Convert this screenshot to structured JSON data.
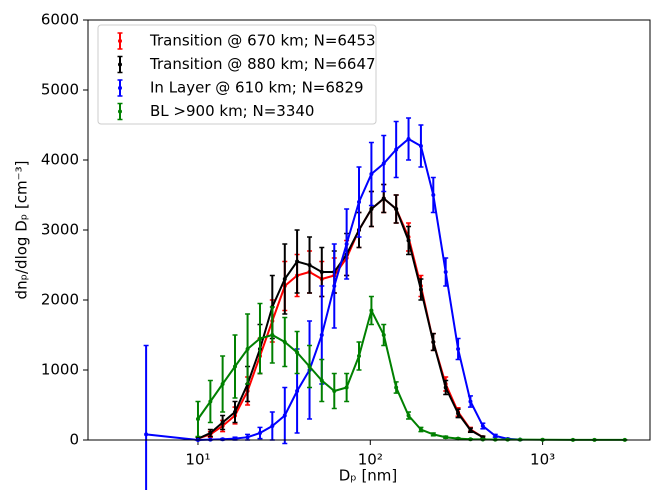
{
  "chart_data": {
    "type": "errorbar",
    "xlabel": "Dₚ [nm]",
    "ylabel": "dnₚ/dlog Dₚ [cm⁻³]",
    "xscale": "log",
    "xlim": [
      2.3,
      4200
    ],
    "ylim": [
      0,
      6000
    ],
    "xticks": [
      {
        "value": 10,
        "label": "10¹"
      },
      {
        "value": 100,
        "label": "10²"
      },
      {
        "value": 1000,
        "label": "10³"
      }
    ],
    "yticks": [
      0,
      1000,
      2000,
      3000,
      4000,
      5000,
      6000
    ],
    "legend": "upper left",
    "series": [
      {
        "name": "Transition @ 670 km; N=6453",
        "color": "#ff0000",
        "x": [
          10,
          11.8,
          13.9,
          16.4,
          19.4,
          22.9,
          27.0,
          31.9,
          37.6,
          44.4,
          52.3,
          61.8,
          72.9,
          86.0,
          101.5,
          119.7,
          141.3,
          166.7,
          196.7,
          232.1,
          273.9,
          323.2,
          381.3,
          450
        ],
        "values": [
          20,
          80,
          200,
          350,
          700,
          1200,
          1700,
          2200,
          2350,
          2400,
          2300,
          2350,
          2600,
          3000,
          3300,
          3450,
          3300,
          2900,
          2200,
          1400,
          800,
          400,
          150,
          40
        ],
        "errors": [
          20,
          40,
          80,
          120,
          200,
          250,
          300,
          350,
          300,
          300,
          250,
          250,
          250,
          250,
          250,
          200,
          200,
          200,
          150,
          120,
          100,
          60,
          30,
          15
        ]
      },
      {
        "name": "Transition @ 880 km; N=6647",
        "color": "#000000",
        "x": [
          10,
          11.8,
          13.9,
          16.4,
          19.4,
          22.9,
          27.0,
          31.9,
          37.6,
          44.4,
          52.3,
          61.8,
          72.9,
          86.0,
          101.5,
          119.7,
          141.3,
          166.7,
          196.7,
          232.1,
          273.9,
          323.2,
          381.3,
          450
        ],
        "values": [
          20,
          100,
          250,
          400,
          800,
          1300,
          1900,
          2300,
          2550,
          2500,
          2400,
          2400,
          2650,
          3000,
          3300,
          3450,
          3300,
          2850,
          2150,
          1400,
          750,
          380,
          140,
          40
        ],
        "errors": [
          20,
          50,
          100,
          150,
          250,
          350,
          450,
          500,
          450,
          400,
          350,
          300,
          300,
          250,
          250,
          200,
          200,
          200,
          150,
          120,
          100,
          60,
          30,
          15
        ]
      },
      {
        "name": "In Layer @ 610 km; N=6829",
        "color": "#0000ff",
        "x": [
          5,
          10,
          11.8,
          13.9,
          16.4,
          19.4,
          22.9,
          27.0,
          31.9,
          37.6,
          44.4,
          52.3,
          61.8,
          72.9,
          86.0,
          101.5,
          119.7,
          141.3,
          166.7,
          196.7,
          232.1,
          273.9,
          323.2,
          381.3,
          450,
          531,
          627,
          740
        ],
        "values": [
          80,
          0,
          5,
          10,
          20,
          40,
          100,
          200,
          350,
          700,
          1000,
          1500,
          2200,
          2800,
          3400,
          3800,
          3950,
          4150,
          4300,
          4200,
          3500,
          2400,
          1300,
          550,
          200,
          60,
          15,
          5
        ],
        "errors": [
          1270,
          5,
          5,
          10,
          20,
          40,
          80,
          200,
          400,
          600,
          700,
          700,
          600,
          500,
          500,
          450,
          400,
          400,
          300,
          300,
          250,
          200,
          150,
          80,
          40,
          20,
          10,
          5
        ]
      },
      {
        "name": "BL >900 km; N=3340",
        "color": "#008000",
        "x": [
          10,
          11.8,
          13.9,
          16.4,
          19.4,
          22.9,
          27.0,
          31.9,
          37.6,
          44.4,
          52.3,
          61.8,
          72.9,
          86.0,
          101.5,
          119.7,
          141.3,
          166.7,
          196.7,
          232.1,
          273.9,
          323.2,
          381.3,
          450,
          531,
          627,
          740,
          1000,
          1500,
          2000,
          3000
        ],
        "values": [
          300,
          550,
          800,
          1050,
          1300,
          1450,
          1500,
          1400,
          1250,
          1050,
          850,
          700,
          750,
          1200,
          1850,
          1500,
          750,
          350,
          150,
          80,
          40,
          20,
          10,
          8,
          5,
          5,
          5,
          3,
          2,
          2,
          1
        ],
        "errors": [
          250,
          300,
          400,
          450,
          500,
          500,
          400,
          350,
          300,
          300,
          300,
          250,
          200,
          200,
          200,
          150,
          80,
          50,
          30,
          20,
          15,
          10,
          8,
          6,
          5,
          5,
          5,
          4,
          3,
          3,
          2
        ]
      }
    ]
  }
}
